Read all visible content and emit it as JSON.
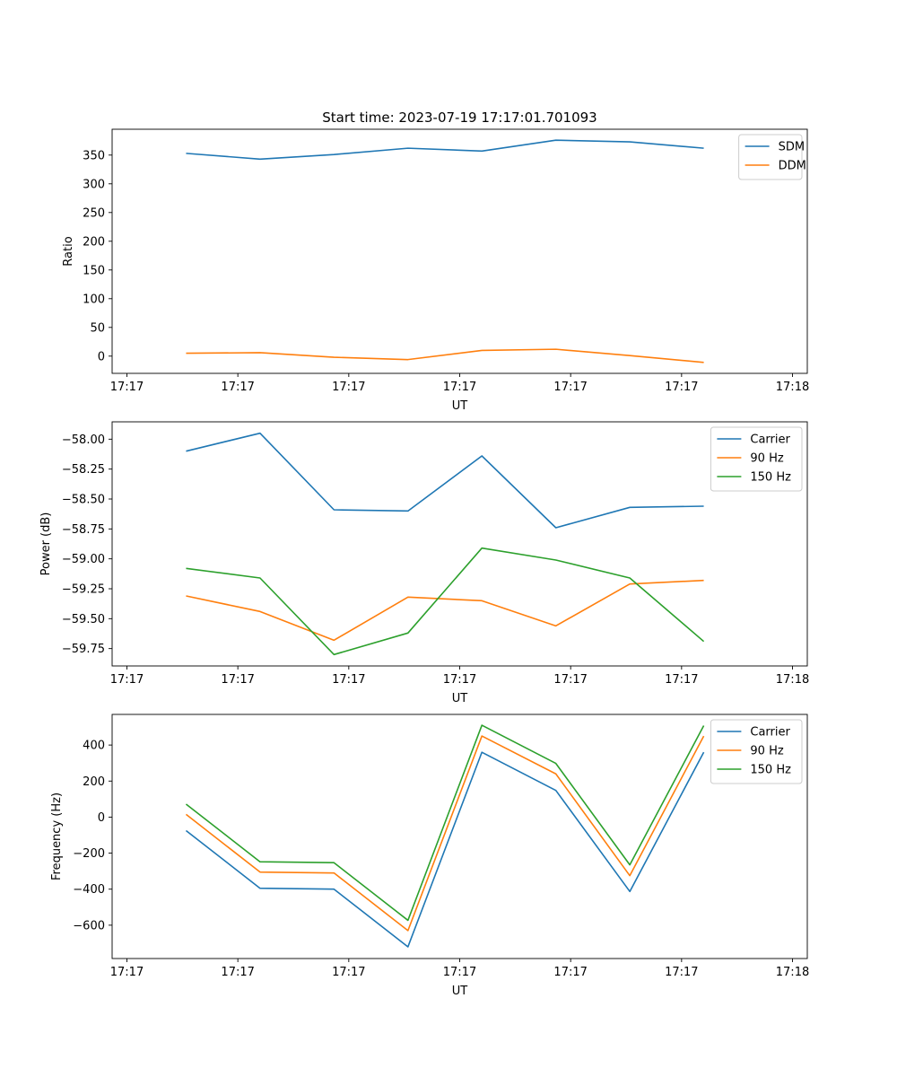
{
  "chart_data": [
    {
      "type": "line",
      "title": "Start time: 2023-07-19 17:17:01.701093",
      "xlabel": "UT",
      "ylabel": "Ratio",
      "x": [
        1,
        2,
        3,
        4,
        5,
        6,
        7,
        8
      ],
      "x_ticks": [
        0.2,
        1.7,
        3.2,
        4.7,
        6.2,
        7.7,
        9.2
      ],
      "x_tick_labels": [
        "17:17",
        "17:17",
        "17:17",
        "17:17",
        "17:17",
        "17:17",
        "17:18"
      ],
      "xlim": [
        0,
        9.4
      ],
      "ylim": [
        -30,
        395
      ],
      "y_ticks": [
        0,
        50,
        100,
        150,
        200,
        250,
        300,
        350
      ],
      "y_tick_labels": [
        "0",
        "50",
        "100",
        "150",
        "200",
        "250",
        "300",
        "350"
      ],
      "legend": "top-right",
      "series": [
        {
          "name": "SDM",
          "color": "#1f77b4",
          "values": [
            353,
            343,
            351,
            362,
            357,
            376,
            373,
            362
          ]
        },
        {
          "name": "DDM",
          "color": "#ff7f0e",
          "values": [
            5,
            6,
            -2,
            -6,
            10,
            12,
            1,
            -11
          ]
        }
      ]
    },
    {
      "type": "line",
      "xlabel": "UT",
      "ylabel": "Power (dB)",
      "x": [
        1,
        2,
        3,
        4,
        5,
        6,
        7,
        8
      ],
      "x_ticks": [
        0.2,
        1.7,
        3.2,
        4.7,
        6.2,
        7.7,
        9.2
      ],
      "x_tick_labels": [
        "17:17",
        "17:17",
        "17:17",
        "17:17",
        "17:17",
        "17:17",
        "17:18"
      ],
      "xlim": [
        0,
        9.4
      ],
      "ylim": [
        -59.895,
        -57.855
      ],
      "y_ticks": [
        -58.0,
        -58.25,
        -58.5,
        -58.75,
        -59.0,
        -59.25,
        -59.5,
        -59.75
      ],
      "y_tick_labels": [
        "−58.00",
        "−58.25",
        "−58.50",
        "−58.75",
        "−59.00",
        "−59.25",
        "−59.50",
        "−59.75"
      ],
      "legend": "top-right",
      "series": [
        {
          "name": "Carrier",
          "color": "#1f77b4",
          "values": [
            -58.1,
            -57.95,
            -58.59,
            -58.6,
            -58.14,
            -58.74,
            -58.57,
            -58.56
          ]
        },
        {
          "name": "90 Hz",
          "color": "#ff7f0e",
          "values": [
            -59.31,
            -59.44,
            -59.68,
            -59.32,
            -59.35,
            -59.56,
            -59.21,
            -59.18
          ]
        },
        {
          "name": "150 Hz",
          "color": "#2ca02c",
          "values": [
            -59.08,
            -59.16,
            -59.8,
            -59.62,
            -58.91,
            -59.01,
            -59.16,
            -59.69
          ]
        }
      ]
    },
    {
      "type": "line",
      "xlabel": "UT",
      "ylabel": "Frequency (Hz)",
      "x": [
        1,
        2,
        3,
        4,
        5,
        6,
        7,
        8
      ],
      "x_ticks": [
        0.2,
        1.7,
        3.2,
        4.7,
        6.2,
        7.7,
        9.2
      ],
      "x_tick_labels": [
        "17:17",
        "17:17",
        "17:17",
        "17:17",
        "17:17",
        "17:17",
        "17:18"
      ],
      "xlim": [
        0,
        9.4
      ],
      "ylim": [
        -785,
        570
      ],
      "y_ticks": [
        -600,
        -400,
        -200,
        0,
        200,
        400
      ],
      "y_tick_labels": [
        "−600",
        "−400",
        "−200",
        "0",
        "200",
        "400"
      ],
      "legend": "top-right",
      "series": [
        {
          "name": "Carrier",
          "color": "#1f77b4",
          "values": [
            -75,
            -395,
            -400,
            -720,
            360,
            148,
            -413,
            360
          ]
        },
        {
          "name": "90 Hz",
          "color": "#ff7f0e",
          "values": [
            15,
            -305,
            -310,
            -630,
            450,
            240,
            -325,
            450
          ]
        },
        {
          "name": "150 Hz",
          "color": "#2ca02c",
          "values": [
            72,
            -248,
            -253,
            -573,
            510,
            298,
            -265,
            508
          ]
        }
      ]
    }
  ]
}
